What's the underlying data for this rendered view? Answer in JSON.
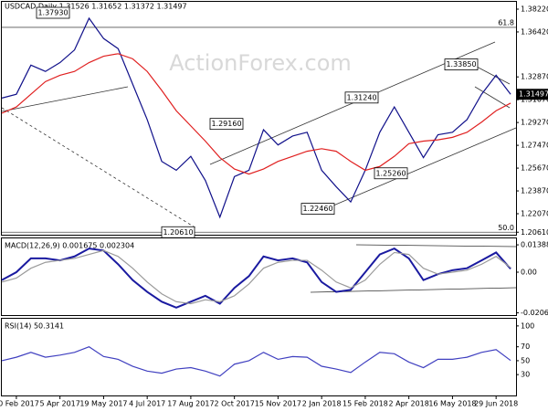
{
  "chart_data": [
    {
      "type": "line",
      "title": "USDCAD,Daily  1.31526 1.31652 1.31372 1.31497",
      "watermark": "ActionForex.com",
      "xlim": [
        0,
        36
      ],
      "ylim": [
        1.2034,
        1.3894
      ],
      "yticks": [
        {
          "value": 1.3822,
          "label": "1.38220"
        },
        {
          "value": 1.3642,
          "label": "1.36420"
        },
        {
          "value": 1.3287,
          "label": "1.32870"
        },
        {
          "value": 1.3107,
          "label": "1.31070"
        },
        {
          "value": 1.2927,
          "label": "1.29270"
        },
        {
          "value": 1.2747,
          "label": "1.27470"
        },
        {
          "value": 1.2567,
          "label": "1.25670"
        },
        {
          "value": 1.2387,
          "label": "1.23870"
        },
        {
          "value": 1.2207,
          "label": "1.22070"
        },
        {
          "value": 1.2061,
          "label": "1.20610"
        }
      ],
      "series": [
        {
          "name": "USDCAD",
          "color": "#10108a",
          "values": [
            1.312,
            1.315,
            1.338,
            1.333,
            1.34,
            1.35,
            1.375,
            1.359,
            1.351,
            1.323,
            1.295,
            1.262,
            1.255,
            1.266,
            1.247,
            1.218,
            1.25,
            1.255,
            1.287,
            1.275,
            1.282,
            1.285,
            1.255,
            1.242,
            1.23,
            1.255,
            1.285,
            1.305,
            1.285,
            1.265,
            1.283,
            1.285,
            1.295,
            1.315,
            1.33,
            1.315
          ]
        },
        {
          "name": "SMA",
          "color": "#e02020",
          "values": [
            1.3,
            1.305,
            1.315,
            1.325,
            1.33,
            1.333,
            1.34,
            1.345,
            1.347,
            1.343,
            1.333,
            1.318,
            1.302,
            1.29,
            1.278,
            1.265,
            1.256,
            1.252,
            1.256,
            1.262,
            1.266,
            1.27,
            1.272,
            1.27,
            1.262,
            1.255,
            1.258,
            1.266,
            1.276,
            1.278,
            1.279,
            1.281,
            1.285,
            1.293,
            1.302,
            1.308
          ]
        }
      ],
      "annotations": [
        {
          "label": "1.37930",
          "value": 1.3793
        },
        {
          "label": "1.29160",
          "value": 1.2916
        },
        {
          "label": "1.20610",
          "value": 1.2061
        },
        {
          "label": "1.31240",
          "value": 1.3124
        },
        {
          "label": "1.22460",
          "value": 1.2246
        },
        {
          "label": "1.25260",
          "value": 1.2526
        },
        {
          "label": "1.33850",
          "value": 1.3385
        }
      ],
      "last_price": {
        "label": "1.31497",
        "value": 1.31497
      },
      "fib_levels": [
        {
          "label": "61.8",
          "value": 1.3678
        },
        {
          "label": "50.0",
          "value": 1.2061
        }
      ]
    },
    {
      "type": "line",
      "title": "MACD(12,26,9) 0.001675 0.002304",
      "xlim": [
        0,
        36
      ],
      "ylim": [
        -0.0218,
        0.0167
      ],
      "yticks": [
        {
          "value": 0.01388,
          "label": "0.013880"
        },
        {
          "value": 0,
          "label": "0.00"
        },
        {
          "value": -0.020646,
          "label": "-0.020646"
        }
      ],
      "series": [
        {
          "name": "MACD",
          "color": "#1a1aa0",
          "values": [
            -0.004,
            0.0,
            0.007,
            0.007,
            0.006,
            0.008,
            0.012,
            0.011,
            0.004,
            -0.004,
            -0.01,
            -0.015,
            -0.018,
            -0.015,
            -0.012,
            -0.016,
            -0.008,
            -0.002,
            0.008,
            0.006,
            0.007,
            0.005,
            -0.005,
            -0.01,
            -0.009,
            0.0,
            0.009,
            0.012,
            0.007,
            -0.004,
            -0.001,
            0.001,
            0.002,
            0.006,
            0.01,
            0.001675
          ]
        },
        {
          "name": "Signal",
          "color": "#9a9a9a",
          "values": [
            -0.005,
            -0.003,
            0.002,
            0.005,
            0.006,
            0.007,
            0.009,
            0.011,
            0.008,
            0.002,
            -0.005,
            -0.011,
            -0.015,
            -0.016,
            -0.014,
            -0.015,
            -0.012,
            -0.006,
            0.002,
            0.005,
            0.006,
            0.006,
            0.001,
            -0.005,
            -0.008,
            -0.004,
            0.004,
            0.01,
            0.009,
            0.002,
            -0.001,
            0.0,
            0.001,
            0.004,
            0.008,
            0.002304
          ]
        }
      ]
    },
    {
      "type": "line",
      "title": "RSI(14) 50.3141",
      "xlim": [
        0,
        36
      ],
      "ylim": [
        0,
        109
      ],
      "yticks": [
        100,
        70,
        50,
        30
      ],
      "xticks": [
        {
          "value": 1,
          "label": "20 Feb 2017"
        },
        {
          "value": 4,
          "label": "5 Apr 2017"
        },
        {
          "value": 7,
          "label": "19 May 2017"
        },
        {
          "value": 10,
          "label": "4 Jul 2017"
        },
        {
          "value": 13,
          "label": "17 Aug 2017"
        },
        {
          "value": 16,
          "label": "2 Oct 2017"
        },
        {
          "value": 19,
          "label": "15 Nov 2017"
        },
        {
          "value": 22,
          "label": "2 Jan 2018"
        },
        {
          "value": 25,
          "label": "15 Feb 2018"
        },
        {
          "value": 28,
          "label": "2 Apr 2018"
        },
        {
          "value": 31,
          "label": "16 May 2018"
        },
        {
          "value": 34,
          "label": "29 Jun 2018"
        }
      ],
      "series": [
        {
          "name": "RSI",
          "color": "#4040c0",
          "values": [
            50,
            55,
            62,
            55,
            58,
            62,
            70,
            56,
            52,
            42,
            35,
            32,
            38,
            40,
            35,
            28,
            45,
            50,
            62,
            52,
            56,
            55,
            42,
            38,
            33,
            48,
            62,
            60,
            48,
            40,
            52,
            52,
            55,
            62,
            66,
            50.3141
          ]
        }
      ]
    }
  ]
}
